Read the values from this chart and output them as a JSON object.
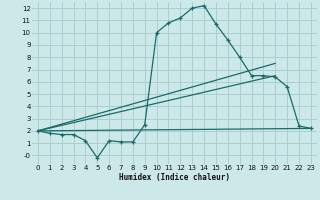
{
  "xlabel": "Humidex (Indice chaleur)",
  "bg_color": "#cce8e8",
  "grid_color": "#aacece",
  "line_color": "#1a6b6b",
  "xlim": [
    -0.5,
    23.5
  ],
  "ylim": [
    -0.7,
    12.5
  ],
  "xticks": [
    0,
    1,
    2,
    3,
    4,
    5,
    6,
    7,
    8,
    9,
    10,
    11,
    12,
    13,
    14,
    15,
    16,
    17,
    18,
    19,
    20,
    21,
    22,
    23
  ],
  "yticks": [
    0,
    1,
    2,
    3,
    4,
    5,
    6,
    7,
    8,
    9,
    10,
    11,
    12
  ],
  "ytick_labels": [
    "-0",
    "1",
    "2",
    "3",
    "4",
    "5",
    "6",
    "7",
    "8",
    "9",
    "10",
    "11",
    "12"
  ],
  "line1_x": [
    0,
    1,
    2,
    3,
    4,
    5,
    6,
    7,
    8,
    9,
    10,
    11,
    12,
    13,
    14,
    15,
    16,
    17,
    18,
    19,
    20,
    21,
    22,
    23
  ],
  "line1_y": [
    2.0,
    1.8,
    1.7,
    1.7,
    1.2,
    -0.2,
    1.2,
    1.1,
    1.1,
    2.5,
    10.0,
    10.8,
    11.2,
    12.0,
    12.2,
    10.7,
    9.4,
    8.0,
    6.5,
    6.5,
    6.4,
    5.6,
    2.4,
    2.2
  ],
  "line2_x": [
    0,
    20
  ],
  "line2_y": [
    2.0,
    7.5
  ],
  "line3_x": [
    0,
    20
  ],
  "line3_y": [
    2.0,
    6.5
  ],
  "line4_x": [
    0,
    23
  ],
  "line4_y": [
    2.0,
    2.2
  ],
  "line2_end_x": 20,
  "line2_end_y": 7.5,
  "line3_end_x": 20,
  "line3_end_y": 6.5
}
